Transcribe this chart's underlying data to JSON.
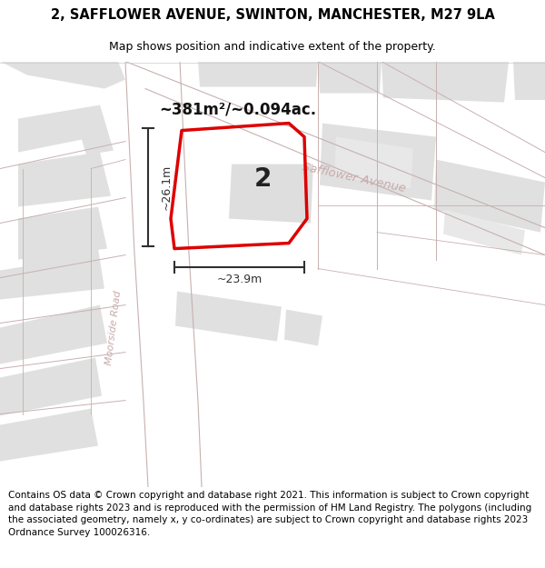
{
  "title": "2, SAFFLOWER AVENUE, SWINTON, MANCHESTER, M27 9LA",
  "subtitle": "Map shows position and indicative extent of the property.",
  "footer": "Contains OS data © Crown copyright and database right 2021. This information is subject to Crown copyright and database rights 2023 and is reproduced with the permission of HM Land Registry. The polygons (including the associated geometry, namely x, y co-ordinates) are subject to Crown copyright and database rights 2023 Ordnance Survey 100026316.",
  "area_label": "~381m²/~0.094ac.",
  "width_label": "~23.9m",
  "height_label": "~26.1m",
  "street_moorside": "Moorside Road",
  "street_safflower": "Safflower Avenue",
  "property_number": "2",
  "map_bg": "#f8f8f8",
  "building_fill": "#e0e0e0",
  "building_edge": "#c8b0b0",
  "road_fill": "#ffffff",
  "road_edge": "#c8b0b0",
  "plot_red": "#dd0000",
  "street_color": "#c8aaaa",
  "dim_color": "#303030",
  "area_color": "#111111",
  "title_fs": 10.5,
  "subtitle_fs": 9,
  "footer_fs": 7.5,
  "area_fs": 12,
  "street_fs_m": 8,
  "street_fs_s": 9.5,
  "number_fs": 20,
  "dim_fs": 9
}
